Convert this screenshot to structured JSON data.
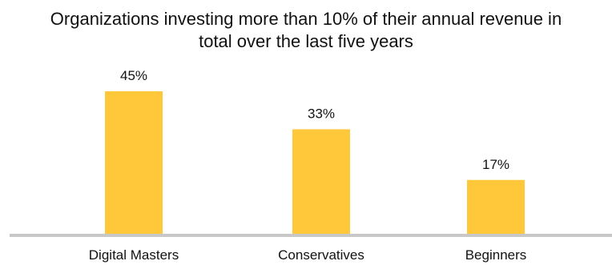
{
  "chart_data": {
    "type": "bar",
    "title_lines": [
      "Organizations investing more than 10% of their annual revenue in",
      "total over the last five years"
    ],
    "categories": [
      "Digital Masters",
      "Conservatives",
      "Beginners"
    ],
    "values": [
      45,
      33,
      17
    ],
    "value_labels": [
      "45%",
      "33%",
      "17%"
    ],
    "xlabel": "",
    "ylabel": "",
    "ylim": [
      0,
      45
    ],
    "grid": false,
    "legend": "none",
    "colors": {
      "bar": "#FFC83A",
      "baseline": "#C8C8C8"
    }
  }
}
